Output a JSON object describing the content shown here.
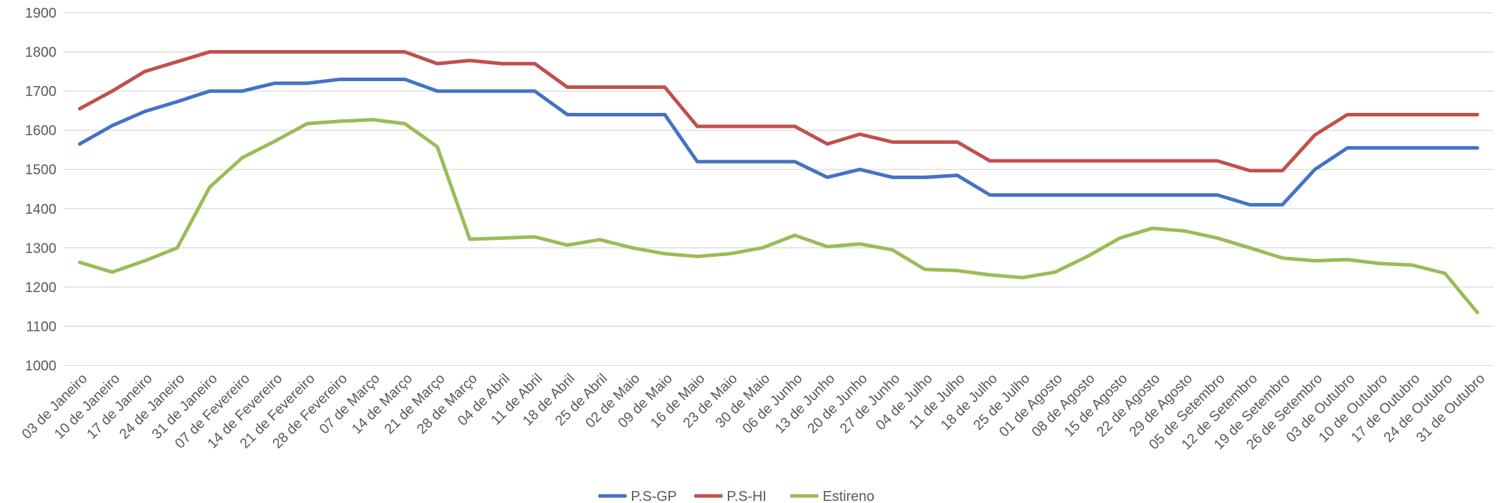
{
  "chart_data": {
    "type": "line",
    "categories": [
      "03 de Janeiro",
      "10 de Janeiro",
      "17 de Janeiro",
      "24 de Janeiro",
      "31 de Janeiro",
      "07 de Fevereiro",
      "14 de Fevereiro",
      "21 de Fevereiro",
      "28 de Fevereiro",
      "07 de Março",
      "14 de Março",
      "21 de Março",
      "28 de Março",
      "04 de Abril",
      "11 de Abril",
      "18 de Abril",
      "25 de Abril",
      "02 de Maio",
      "09 de Maio",
      "16 de Maio",
      "23 de Maio",
      "30 de Maio",
      "06 de Junho",
      "13 de Junho",
      "20 de Junho",
      "27 de Junho",
      "04 de Julho",
      "11 de Julho",
      "18 de Julho",
      "25 de Julho",
      "01 de Agosto",
      "08 de Agosto",
      "15 de Agosto",
      "22 de Agosto",
      "29 de Agosto",
      "05 de Setembro",
      "12 de Setembro",
      "19 de Setembro",
      "26 de Setembro",
      "03 de Outubro",
      "10 de Outubro",
      "17 de Outubro",
      "24 de Outubro",
      "31 de Outubro"
    ],
    "series": [
      {
        "name": "P.S-GP",
        "color": "#4472c4",
        "values": [
          1565,
          1612,
          1648,
          1673,
          1700,
          1700,
          1720,
          1720,
          1730,
          1730,
          1730,
          1700,
          1700,
          1700,
          1700,
          1640,
          1640,
          1640,
          1640,
          1520,
          1520,
          1520,
          1520,
          1480,
          1500,
          1480,
          1480,
          1485,
          1435,
          1435,
          1435,
          1435,
          1435,
          1435,
          1435,
          1435,
          1410,
          1410,
          1500,
          1555,
          1555,
          1555,
          1555,
          1555
        ]
      },
      {
        "name": "P.S-HI",
        "color": "#c0504d",
        "values": [
          1655,
          1700,
          1750,
          1775,
          1800,
          1800,
          1800,
          1800,
          1800,
          1800,
          1800,
          1770,
          1778,
          1770,
          1770,
          1710,
          1710,
          1710,
          1710,
          1610,
          1610,
          1610,
          1610,
          1565,
          1590,
          1570,
          1570,
          1570,
          1522,
          1522,
          1522,
          1522,
          1522,
          1522,
          1522,
          1522,
          1497,
          1497,
          1588,
          1640,
          1640,
          1640,
          1640,
          1640
        ]
      },
      {
        "name": "Estireno",
        "color": "#9bbb59",
        "values": [
          1263,
          1238,
          1267,
          1300,
          1455,
          1530,
          1572,
          1617,
          1623,
          1627,
          1617,
          1558,
          1322,
          1325,
          1328,
          1307,
          1321,
          1300,
          1285,
          1278,
          1285,
          1300,
          1332,
          1303,
          1310,
          1295,
          1245,
          1242,
          1231,
          1224,
          1238,
          1278,
          1325,
          1350,
          1343,
          1325,
          1300,
          1274,
          1267,
          1270,
          1260,
          1256,
          1235,
          1135
        ]
      }
    ],
    "ylim": [
      1000,
      1900
    ],
    "yticks": [
      1000,
      1100,
      1200,
      1300,
      1400,
      1500,
      1600,
      1700,
      1800,
      1900
    ],
    "grid": true,
    "legend": "bottom"
  }
}
